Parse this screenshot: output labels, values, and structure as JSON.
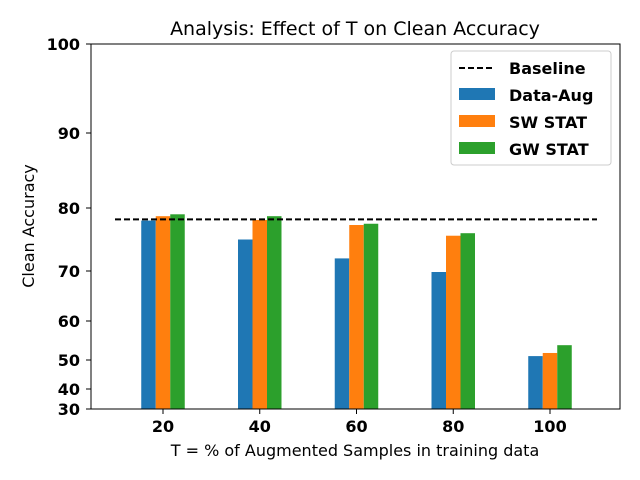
{
  "chart_data": {
    "type": "bar",
    "title": "Analysis: Effect of T on Clean Accuracy",
    "xlabel": "T = % of Augmented Samples in training data",
    "ylabel": "Clean Accuracy",
    "categories": [
      "20",
      "40",
      "60",
      "80",
      "100"
    ],
    "yticks": [
      30,
      40,
      50,
      60,
      70,
      80,
      90,
      100
    ],
    "ylim": [
      30,
      100
    ],
    "y_scale": "nonlinear (tick positions unevenly spaced)",
    "grid": false,
    "legend_position": "top-right",
    "series": [
      {
        "name": "Data-Aug",
        "color": "#1f77b4",
        "values": [
          78.0,
          75.0,
          72.0,
          69.8,
          51.0
        ]
      },
      {
        "name": "SW STAT",
        "color": "#ff7f0e",
        "values": [
          78.7,
          78.1,
          77.3,
          75.6,
          51.8
        ]
      },
      {
        "name": "GW STAT",
        "color": "#2ca02c",
        "values": [
          79.0,
          78.7,
          77.5,
          76.0,
          53.8
        ]
      }
    ],
    "baseline": {
      "name": "Baseline",
      "value": 78.2,
      "style": "dashed",
      "color": "#000000"
    }
  }
}
